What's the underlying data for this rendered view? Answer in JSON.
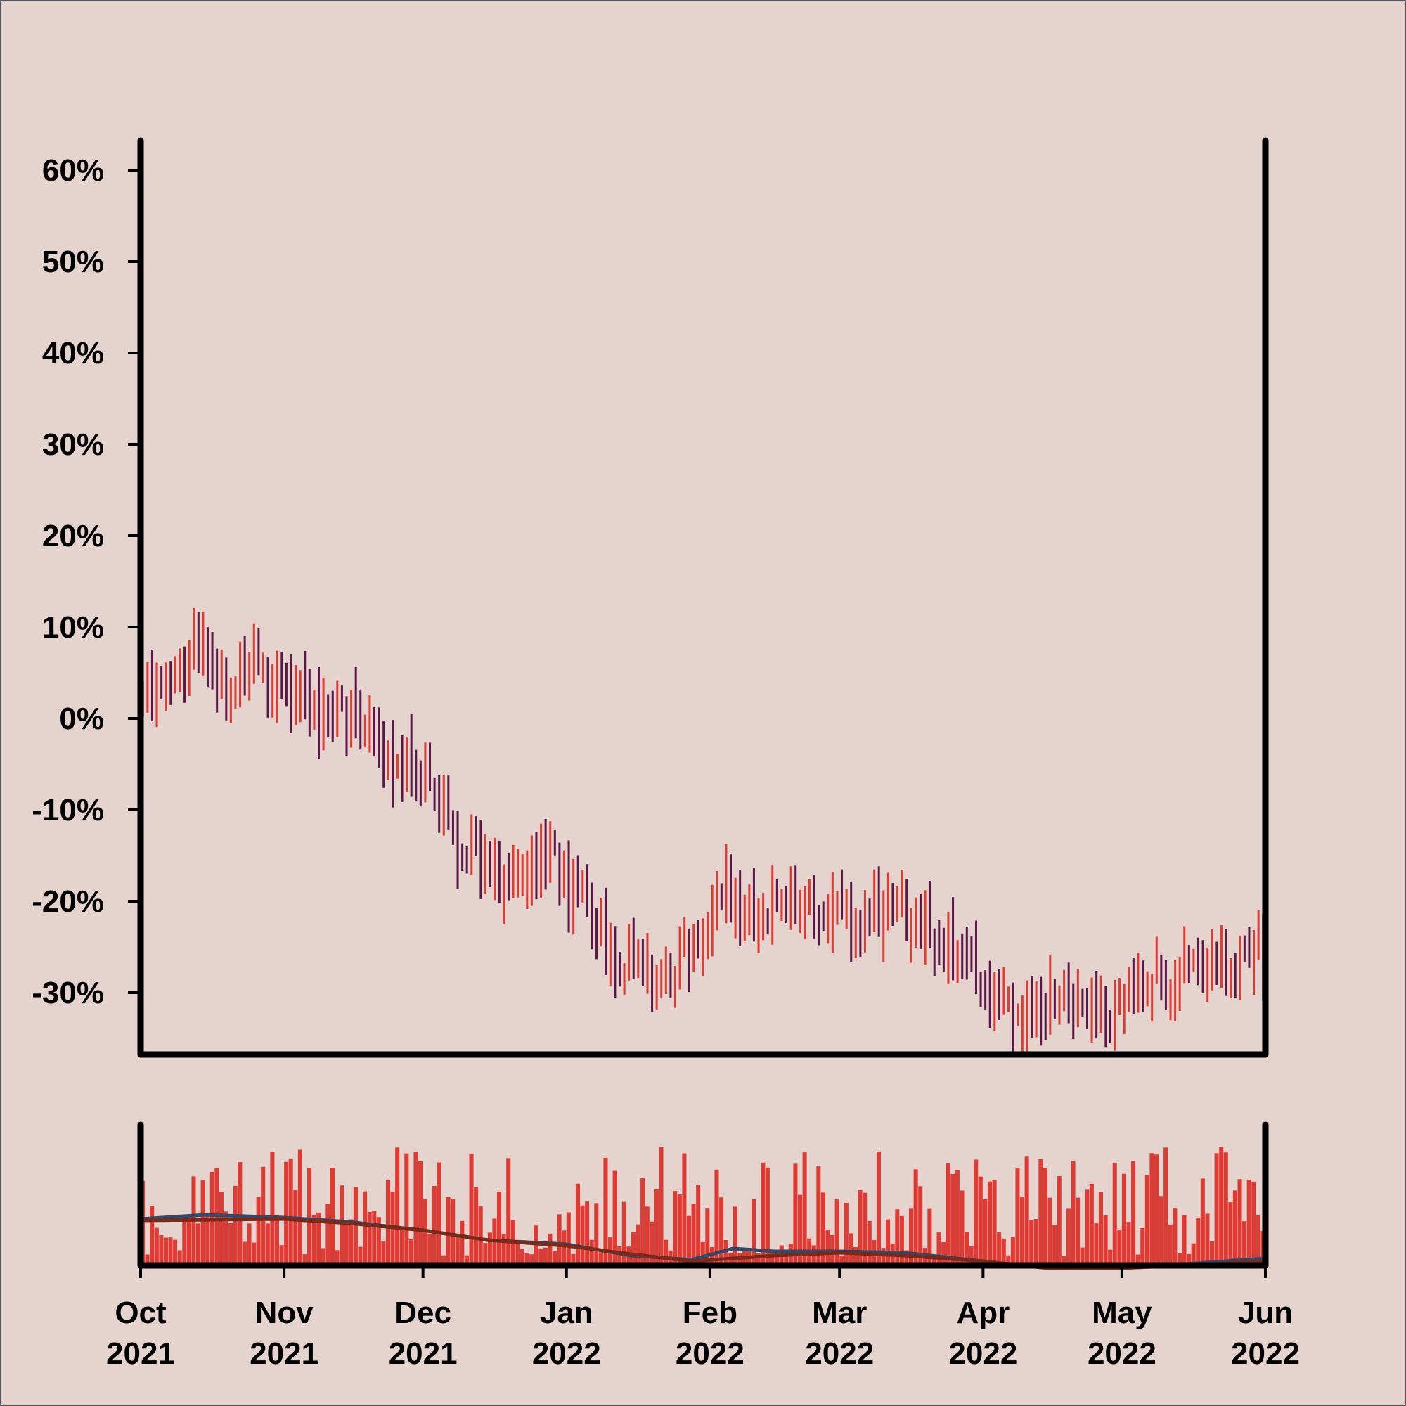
{
  "colors": {
    "background": "#e5d3ce",
    "bar_up": "#dd3b33",
    "bar_down": "#5a1748",
    "volume": "#dd3b33",
    "volume_ma_fast": "#2f4a6a",
    "volume_ma_slow": "#7a2a18",
    "axis": "#000000"
  },
  "chart_data": {
    "type": "ohlc",
    "title": "",
    "ylabel": "",
    "xlabel": "",
    "y_format": "percent",
    "ylim": [
      -36.5,
      63.5
    ],
    "yticks": [
      {
        "value": 60,
        "label": "60%"
      },
      {
        "value": 50,
        "label": "50%"
      },
      {
        "value": 40,
        "label": "40%"
      },
      {
        "value": 30,
        "label": "30%"
      },
      {
        "value": 20,
        "label": "20%"
      },
      {
        "value": 10,
        "label": "10%"
      },
      {
        "value": 0,
        "label": "0%"
      },
      {
        "value": -10,
        "label": "-10%"
      },
      {
        "value": -20,
        "label": "-20%"
      },
      {
        "value": -30,
        "label": "-30%"
      }
    ],
    "x_range": [
      "2021-10-01",
      "2022-06-01"
    ],
    "xticks": [
      {
        "date": "2021-10-01",
        "label": [
          "Oct",
          "2021"
        ]
      },
      {
        "date": "2021-11-01",
        "label": [
          "Nov",
          "2021"
        ]
      },
      {
        "date": "2021-12-01",
        "label": [
          "Dec",
          "2021"
        ]
      },
      {
        "date": "2022-01-01",
        "label": [
          "Jan",
          "2022"
        ]
      },
      {
        "date": "2022-02-01",
        "label": [
          "Feb",
          "2022"
        ]
      },
      {
        "date": "2022-03-01",
        "label": [
          "Mar",
          "2022"
        ]
      },
      {
        "date": "2022-04-01",
        "label": [
          "Apr",
          "2022"
        ]
      },
      {
        "date": "2022-05-01",
        "label": [
          "May",
          "2022"
        ]
      },
      {
        "date": "2022-06-01",
        "label": [
          "Jun",
          "2022"
        ]
      }
    ],
    "price_trend": [
      {
        "date": "2021-10-01",
        "close": 3
      },
      {
        "date": "2021-10-08",
        "close": 4
      },
      {
        "date": "2021-10-13",
        "close": 8
      },
      {
        "date": "2021-10-17",
        "close": 3
      },
      {
        "date": "2021-10-25",
        "close": 5
      },
      {
        "date": "2021-11-05",
        "close": 1
      },
      {
        "date": "2021-11-15",
        "close": 0
      },
      {
        "date": "2021-11-23",
        "close": -5
      },
      {
        "date": "2021-11-30",
        "close": -5
      },
      {
        "date": "2021-12-05",
        "close": -10
      },
      {
        "date": "2021-12-10",
        "close": -16
      },
      {
        "date": "2021-12-18",
        "close": -17
      },
      {
        "date": "2021-12-26",
        "close": -14
      },
      {
        "date": "2022-01-02",
        "close": -19
      },
      {
        "date": "2022-01-08",
        "close": -23
      },
      {
        "date": "2022-01-14",
        "close": -27
      },
      {
        "date": "2022-01-22",
        "close": -28
      },
      {
        "date": "2022-01-29",
        "close": -25
      },
      {
        "date": "2022-02-03",
        "close": -18
      },
      {
        "date": "2022-02-10",
        "close": -21
      },
      {
        "date": "2022-02-18",
        "close": -20
      },
      {
        "date": "2022-02-26",
        "close": -21
      },
      {
        "date": "2022-03-05",
        "close": -22
      },
      {
        "date": "2022-03-12",
        "close": -20
      },
      {
        "date": "2022-03-20",
        "close": -24
      },
      {
        "date": "2022-03-28",
        "close": -27
      },
      {
        "date": "2022-04-05",
        "close": -32
      },
      {
        "date": "2022-04-12",
        "close": -31
      },
      {
        "date": "2022-04-20",
        "close": -30
      },
      {
        "date": "2022-04-28",
        "close": -33
      },
      {
        "date": "2022-05-05",
        "close": -30
      },
      {
        "date": "2022-05-12",
        "close": -28
      },
      {
        "date": "2022-05-19",
        "close": -29
      },
      {
        "date": "2022-05-27",
        "close": -25
      },
      {
        "date": "2022-06-01",
        "close": -26
      }
    ],
    "volume_ma_fast": [
      {
        "date": "2021-10-01",
        "value": 0.33
      },
      {
        "date": "2021-10-15",
        "value": 0.36
      },
      {
        "date": "2021-11-01",
        "value": 0.34
      },
      {
        "date": "2021-11-15",
        "value": 0.31
      },
      {
        "date": "2021-12-01",
        "value": 0.25
      },
      {
        "date": "2021-12-15",
        "value": 0.18
      },
      {
        "date": "2022-01-01",
        "value": 0.15
      },
      {
        "date": "2022-01-15",
        "value": 0.07
      },
      {
        "date": "2022-01-28",
        "value": 0.04
      },
      {
        "date": "2022-02-06",
        "value": 0.12
      },
      {
        "date": "2022-02-15",
        "value": 0.1
      },
      {
        "date": "2022-03-01",
        "value": 0.1
      },
      {
        "date": "2022-03-15",
        "value": 0.09
      },
      {
        "date": "2022-04-01",
        "value": 0.03
      },
      {
        "date": "2022-04-10",
        "value": -0.01
      },
      {
        "date": "2022-04-20",
        "value": 0.01
      },
      {
        "date": "2022-05-01",
        "value": -0.01
      },
      {
        "date": "2022-05-15",
        "value": 0.01
      },
      {
        "date": "2022-06-01",
        "value": 0.05
      }
    ],
    "volume_ma_slow": [
      {
        "date": "2021-10-01",
        "value": 0.32
      },
      {
        "date": "2021-11-01",
        "value": 0.33
      },
      {
        "date": "2021-11-15",
        "value": 0.3
      },
      {
        "date": "2021-12-01",
        "value": 0.25
      },
      {
        "date": "2021-12-15",
        "value": 0.18
      },
      {
        "date": "2022-01-01",
        "value": 0.14
      },
      {
        "date": "2022-01-15",
        "value": 0.08
      },
      {
        "date": "2022-01-28",
        "value": 0.03
      },
      {
        "date": "2022-02-15",
        "value": 0.07
      },
      {
        "date": "2022-03-01",
        "value": 0.09
      },
      {
        "date": "2022-03-15",
        "value": 0.07
      },
      {
        "date": "2022-04-01",
        "value": 0.03
      },
      {
        "date": "2022-04-15",
        "value": -0.02
      },
      {
        "date": "2022-05-01",
        "value": -0.02
      },
      {
        "date": "2022-06-01",
        "value": 0.03
      }
    ]
  }
}
